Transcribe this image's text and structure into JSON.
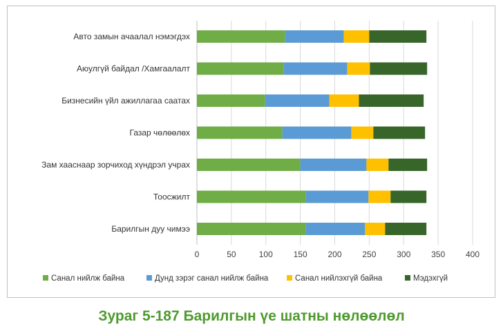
{
  "caption": "Зураг 5-187 Барилгын үе шатны нөлөөлөл",
  "chart_data": {
    "type": "bar",
    "orientation": "horizontal",
    "stacked": true,
    "categories": [
      "Авто замын ачаалал нэмэгдэх",
      "Аюулгүй байдал /Хамгаалалт",
      "Бизнесийн үйл ажиллагаа  саатах",
      "Газар чөлөөлөх",
      "Зам хааснаар зорчиход хүндрэл учрах",
      "Тоосжилт",
      "Барилгын дуу чимээ"
    ],
    "series": [
      {
        "name": "Санал нийлж байна",
        "color": "#70ad47",
        "values": [
          128,
          126,
          99,
          124,
          150,
          158,
          158
        ]
      },
      {
        "name": "Дунд зэрэг санал нийлж байна",
        "color": "#5b9bd5",
        "values": [
          85,
          92,
          93,
          100,
          96,
          91,
          86
        ]
      },
      {
        "name": "Санал нийлэхгүй байна",
        "color": "#ffc000",
        "values": [
          37,
          33,
          43,
          32,
          32,
          32,
          29
        ]
      },
      {
        "name": "Мэдэхгүй",
        "color": "#38662a",
        "values": [
          83,
          83,
          94,
          75,
          56,
          52,
          60
        ]
      }
    ],
    "xlim": [
      0,
      400
    ],
    "xticks": [
      "0",
      "50",
      "100",
      "150",
      "200",
      "250",
      "300",
      "350",
      "400"
    ],
    "grid": "vertical",
    "legend": "bottom"
  }
}
